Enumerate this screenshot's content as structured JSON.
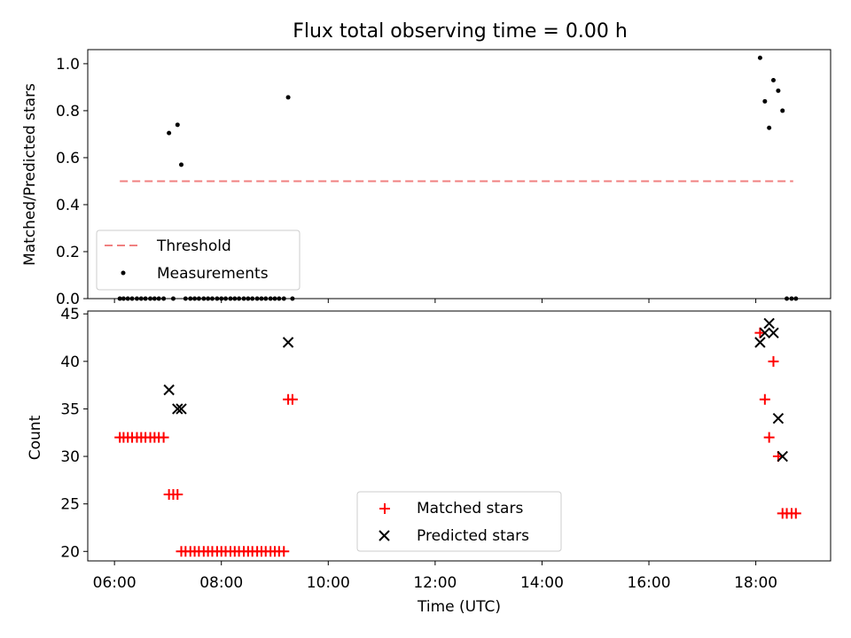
{
  "chart_data": [
    {
      "type": "scatter",
      "title": "Flux total observing time = 0.00 h",
      "xlabel": "",
      "ylabel": "Matched/Predicted stars",
      "xlim": [
        5.5,
        19.4
      ],
      "ylim": [
        0.0,
        1.06
      ],
      "yticks": [
        "0.0",
        "0.2",
        "0.4",
        "0.6",
        "0.8",
        "1.0"
      ],
      "threshold": {
        "name": "Threshold",
        "value": 0.5,
        "x_range": [
          6.1,
          18.7
        ],
        "color": "#f08080"
      },
      "series": [
        {
          "name": "Measurements",
          "color": "#000000",
          "points": [
            [
              7.02,
              0.705
            ],
            [
              7.18,
              0.74
            ],
            [
              7.25,
              0.57
            ],
            [
              9.25,
              0.857
            ],
            [
              18.08,
              1.025
            ],
            [
              18.17,
              0.84
            ],
            [
              18.25,
              0.727
            ],
            [
              18.33,
              0.93
            ],
            [
              18.42,
              0.885
            ],
            [
              18.5,
              0.8
            ],
            [
              6.1,
              0
            ],
            [
              6.17,
              0
            ],
            [
              6.25,
              0
            ],
            [
              6.33,
              0
            ],
            [
              6.42,
              0
            ],
            [
              6.5,
              0
            ],
            [
              6.58,
              0
            ],
            [
              6.67,
              0
            ],
            [
              6.75,
              0
            ],
            [
              6.83,
              0
            ],
            [
              6.92,
              0
            ],
            [
              7.1,
              0
            ],
            [
              7.33,
              0
            ],
            [
              7.42,
              0
            ],
            [
              7.5,
              0
            ],
            [
              7.58,
              0
            ],
            [
              7.67,
              0
            ],
            [
              7.75,
              0
            ],
            [
              7.83,
              0
            ],
            [
              7.92,
              0
            ],
            [
              8.0,
              0
            ],
            [
              8.08,
              0
            ],
            [
              8.17,
              0
            ],
            [
              8.25,
              0
            ],
            [
              8.33,
              0
            ],
            [
              8.42,
              0
            ],
            [
              8.5,
              0
            ],
            [
              8.58,
              0
            ],
            [
              8.67,
              0
            ],
            [
              8.75,
              0
            ],
            [
              8.83,
              0
            ],
            [
              8.92,
              0
            ],
            [
              9.0,
              0
            ],
            [
              9.08,
              0
            ],
            [
              9.17,
              0
            ],
            [
              9.33,
              0
            ],
            [
              18.58,
              0
            ],
            [
              18.67,
              0
            ],
            [
              18.75,
              0
            ]
          ]
        }
      ],
      "legend": [
        "Threshold",
        "Measurements"
      ],
      "legend_position": "lower-left"
    },
    {
      "type": "scatter",
      "title": "",
      "xlabel": "Time (UTC)",
      "ylabel": "Count",
      "xlim": [
        5.5,
        19.4
      ],
      "ylim": [
        19.0,
        45.3
      ],
      "xticks": [
        "06:00",
        "08:00",
        "10:00",
        "12:00",
        "14:00",
        "16:00",
        "18:00"
      ],
      "yticks": [
        "20",
        "25",
        "30",
        "35",
        "40",
        "45"
      ],
      "series": [
        {
          "name": "Matched stars",
          "marker": "plus",
          "color": "#ff0000",
          "points": [
            [
              6.1,
              32
            ],
            [
              6.17,
              32
            ],
            [
              6.25,
              32
            ],
            [
              6.33,
              32
            ],
            [
              6.42,
              32
            ],
            [
              6.5,
              32
            ],
            [
              6.58,
              32
            ],
            [
              6.67,
              32
            ],
            [
              6.75,
              32
            ],
            [
              6.83,
              32
            ],
            [
              6.92,
              32
            ],
            [
              7.02,
              26
            ],
            [
              7.1,
              26
            ],
            [
              7.18,
              26
            ],
            [
              7.25,
              20
            ],
            [
              7.33,
              20
            ],
            [
              7.42,
              20
            ],
            [
              7.5,
              20
            ],
            [
              7.58,
              20
            ],
            [
              7.67,
              20
            ],
            [
              7.75,
              20
            ],
            [
              7.83,
              20
            ],
            [
              7.92,
              20
            ],
            [
              8.0,
              20
            ],
            [
              8.08,
              20
            ],
            [
              8.17,
              20
            ],
            [
              8.25,
              20
            ],
            [
              8.33,
              20
            ],
            [
              8.42,
              20
            ],
            [
              8.5,
              20
            ],
            [
              8.58,
              20
            ],
            [
              8.67,
              20
            ],
            [
              8.75,
              20
            ],
            [
              8.83,
              20
            ],
            [
              8.92,
              20
            ],
            [
              9.0,
              20
            ],
            [
              9.08,
              20
            ],
            [
              9.17,
              20
            ],
            [
              9.25,
              36
            ],
            [
              9.33,
              36
            ],
            [
              18.08,
              43
            ],
            [
              18.17,
              36
            ],
            [
              18.25,
              32
            ],
            [
              18.33,
              40
            ],
            [
              18.42,
              30
            ],
            [
              18.5,
              24
            ],
            [
              18.58,
              24
            ],
            [
              18.67,
              24
            ],
            [
              18.75,
              24
            ]
          ]
        },
        {
          "name": "Predicted stars",
          "marker": "x",
          "color": "#000000",
          "points": [
            [
              7.02,
              37
            ],
            [
              7.18,
              35
            ],
            [
              7.25,
              35
            ],
            [
              9.25,
              42
            ],
            [
              18.08,
              42
            ],
            [
              18.17,
              43
            ],
            [
              18.25,
              44
            ],
            [
              18.33,
              43
            ],
            [
              18.42,
              34
            ],
            [
              18.5,
              30
            ]
          ]
        }
      ],
      "legend": [
        "Matched stars",
        "Predicted stars"
      ],
      "legend_position": "lower-center"
    }
  ]
}
